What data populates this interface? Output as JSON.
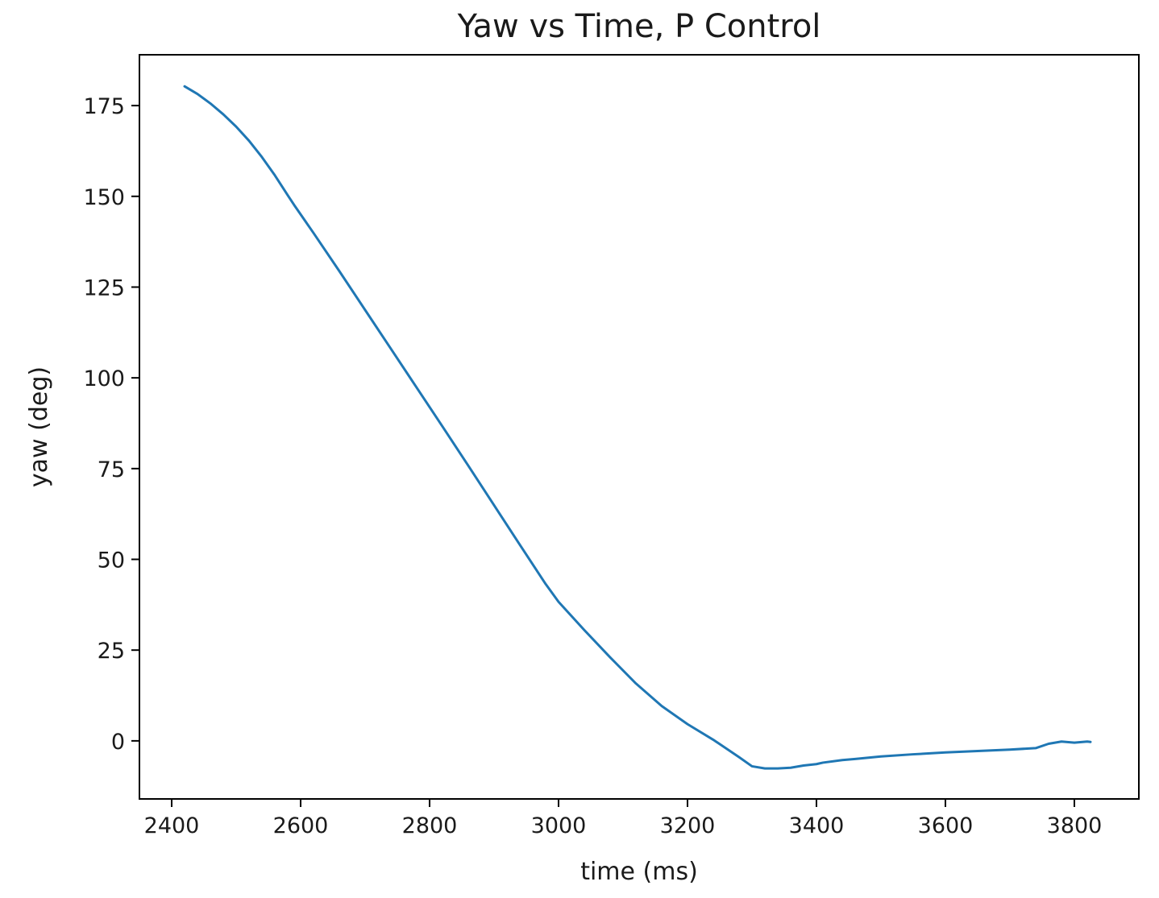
{
  "chart_data": {
    "type": "line",
    "title": "Yaw vs Time, P Control",
    "xlabel": "time (ms)",
    "ylabel": "yaw (deg)",
    "xlim": [
      2350,
      3900
    ],
    "ylim": [
      -16,
      189
    ],
    "xticks": [
      2400,
      2600,
      2800,
      3000,
      3200,
      3400,
      3600,
      3800
    ],
    "yticks": [
      0,
      25,
      50,
      75,
      100,
      125,
      150,
      175
    ],
    "grid": false,
    "legend": "none",
    "line_color": "#1f77b4",
    "series": [
      {
        "x": [
          2420,
          2440,
          2460,
          2480,
          2500,
          2520,
          2540,
          2560,
          2580,
          2590,
          2620,
          2660,
          2700,
          2740,
          2780,
          2820,
          2860,
          2900,
          2940,
          2980,
          3000,
          3040,
          3080,
          3120,
          3160,
          3200,
          3240,
          3280,
          3300,
          3320,
          3340,
          3360,
          3380,
          3400,
          3410,
          3440,
          3460,
          3500,
          3550,
          3600,
          3650,
          3700,
          3740,
          3760,
          3780,
          3800,
          3820,
          3825
        ],
        "y": [
          180.3,
          178.2,
          175.6,
          172.6,
          169.2,
          165.3,
          160.8,
          155.8,
          150.3,
          147.6,
          139.9,
          129.4,
          118.7,
          108.0,
          97.3,
          86.6,
          75.8,
          64.9,
          54.0,
          43.2,
          38.3,
          30.5,
          23.0,
          15.8,
          9.6,
          4.6,
          0.3,
          -4.5,
          -7.0,
          -7.6,
          -7.6,
          -7.4,
          -6.8,
          -6.4,
          -6.0,
          -5.3,
          -5.0,
          -4.3,
          -3.7,
          -3.2,
          -2.8,
          -2.4,
          -2.0,
          -0.8,
          -0.2,
          -0.5,
          -0.2,
          -0.3
        ]
      }
    ]
  }
}
